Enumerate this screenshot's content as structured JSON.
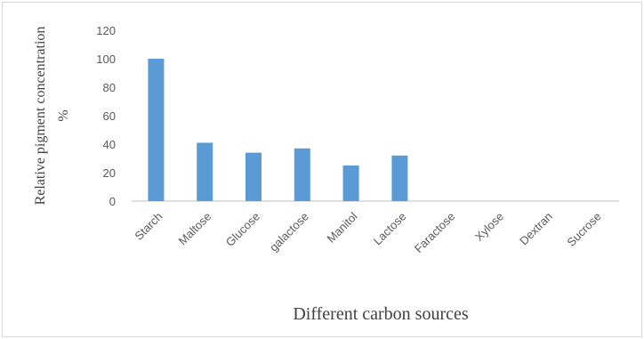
{
  "chart_data": {
    "type": "bar",
    "title": "",
    "xlabel": "Different carbon sources",
    "ylabel": [
      "Relative pigment concentration",
      "%"
    ],
    "categories": [
      "Starch",
      "Maltose",
      "Glucose",
      "galactose",
      "Manitol",
      "Lactose",
      "Faractose",
      "Xylose",
      "Dextran",
      "Sucrose"
    ],
    "values": [
      100,
      41,
      34,
      37,
      25,
      32,
      0,
      0,
      0,
      0
    ],
    "yticks": [
      "0",
      "20",
      "40",
      "60",
      "80",
      "100",
      "120"
    ],
    "ylim": [
      0,
      120
    ],
    "grid": false,
    "legend": "none",
    "bar_color": "#5b9bd5",
    "axis_color": "#bfbfbf"
  }
}
